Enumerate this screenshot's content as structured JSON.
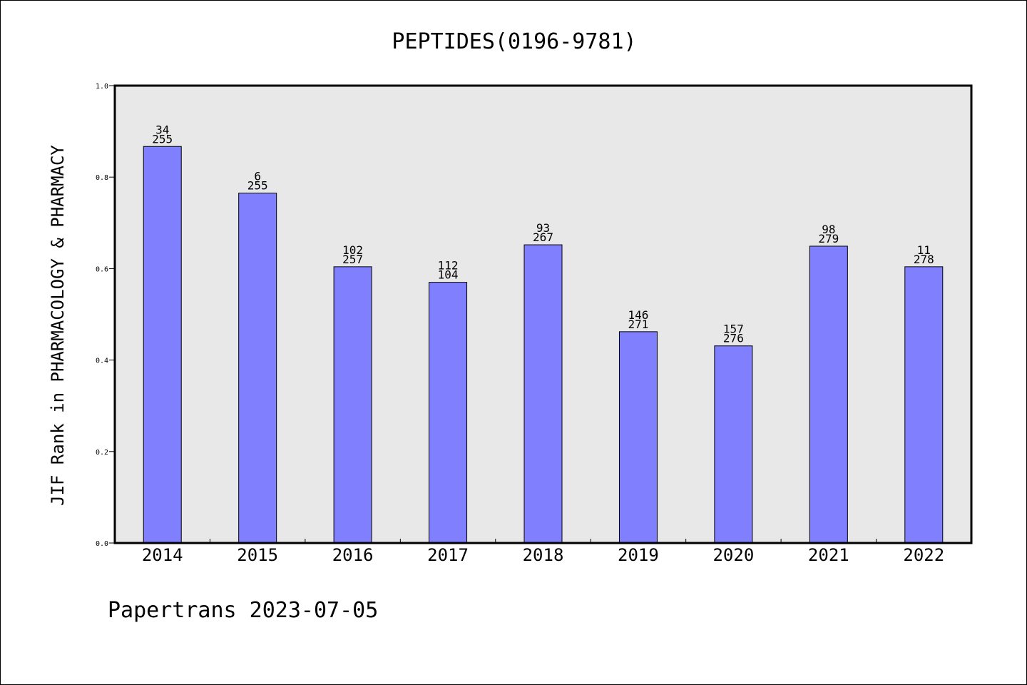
{
  "chart_data": {
    "type": "bar",
    "title": "PEPTIDES(0196-9781)",
    "xlabel": "",
    "ylabel": "JIF Rank in PHARMACOLOGY & PHARMACY",
    "ylim": [
      0,
      1.0
    ],
    "yticks": [
      "0.0",
      "0.2",
      "0.4",
      "0.6",
      "0.8",
      "1.0"
    ],
    "grid": false,
    "categories": [
      "2014",
      "2015",
      "2016",
      "2017",
      "2018",
      "2019",
      "2020",
      "2021",
      "2022"
    ],
    "values": [
      0.867,
      0.765,
      0.604,
      0.57,
      0.652,
      0.462,
      0.431,
      0.649,
      0.604
    ],
    "rank": [
      "34",
      "6",
      "102",
      "112",
      "93",
      "146",
      "157",
      "98",
      "11"
    ],
    "total": [
      "255",
      "255",
      "257",
      "104",
      "267",
      "271",
      "276",
      "279",
      "278"
    ],
    "colors": {
      "bar": "#8080ff",
      "plot_background": "#e8e8e8"
    }
  },
  "footer": {
    "text": "Papertrans 2023-07-05"
  }
}
